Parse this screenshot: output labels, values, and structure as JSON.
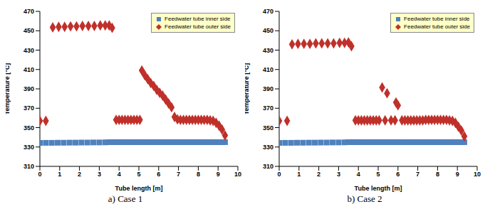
{
  "chart_data": [
    {
      "type": "scatter",
      "title": "a) Case 1",
      "x_label": "Tube length [m]",
      "y_label": "Temperature [°C]",
      "xlim": [
        0,
        10
      ],
      "xticks": [
        0,
        1,
        2,
        3,
        4,
        5,
        6,
        7,
        8,
        9,
        10
      ],
      "ylim": [
        310,
        470
      ],
      "yticks": [
        310,
        330,
        350,
        370,
        390,
        410,
        430,
        450,
        470
      ],
      "grid": false,
      "legend": "upper right",
      "series": [
        {
          "name": "Feedwater tube inner side",
          "color": "#4f81bd",
          "marker": "square",
          "x": [
            0,
            0.3,
            0.6,
            0.9,
            1.2,
            1.5,
            1.8,
            2.1,
            2.4,
            2.7,
            3.0,
            3.3,
            3.5,
            3.65,
            3.8,
            3.95,
            4.1,
            4.25,
            4.4,
            4.55,
            4.7,
            4.85,
            5.0,
            5.15,
            5.3,
            5.45,
            5.6,
            5.75,
            5.9,
            6.05,
            6.2,
            6.35,
            6.5,
            6.65,
            6.8,
            6.95,
            7.1,
            7.25,
            7.4,
            7.55,
            7.7,
            7.85,
            8.0,
            8.15,
            8.3,
            8.45,
            8.6,
            8.75,
            8.9,
            9.05,
            9.2,
            9.35
          ],
          "values": [
            334.2,
            334.3,
            334.3,
            334.4,
            334.4,
            334.5,
            334.5,
            334.6,
            334.6,
            334.7,
            334.7,
            334.8,
            335,
            335,
            335,
            335,
            335,
            335,
            335,
            335,
            335,
            335,
            335,
            335,
            335,
            335,
            335,
            335,
            335,
            335,
            335,
            335,
            335,
            335,
            335,
            335,
            335,
            335,
            335,
            335,
            335,
            335,
            335,
            335,
            335,
            335,
            335,
            335,
            335,
            335,
            335,
            335
          ]
        },
        {
          "name": "Feedwater tube outer side",
          "color": "#c0302a",
          "marker": "diamond",
          "x": [
            0,
            0.3,
            0.65,
            0.95,
            1.25,
            1.55,
            1.85,
            2.15,
            2.45,
            2.75,
            3.05,
            3.3,
            3.5,
            3.65,
            3.85,
            4.0,
            4.15,
            4.3,
            4.45,
            4.6,
            4.75,
            4.9,
            5.05,
            5.15,
            5.3,
            5.45,
            5.6,
            5.75,
            5.9,
            6.05,
            6.2,
            6.35,
            6.5,
            6.65,
            6.8,
            6.95,
            7.1,
            7.25,
            7.4,
            7.55,
            7.7,
            7.85,
            8.0,
            8.15,
            8.3,
            8.45,
            8.6,
            8.75,
            8.9,
            9.05,
            9.2,
            9.35
          ],
          "values": [
            357,
            357,
            453.5,
            454,
            454,
            454.5,
            454.5,
            455,
            455,
            455,
            455.5,
            455.5,
            455.5,
            453,
            358,
            358,
            358,
            358,
            358,
            358,
            358,
            358,
            358,
            409,
            404,
            400,
            396,
            393,
            389,
            386,
            383,
            379,
            375,
            371,
            361,
            358.5,
            358,
            358,
            358,
            358,
            358,
            358,
            358,
            358,
            358,
            358,
            357.5,
            357,
            355,
            352,
            348,
            342
          ]
        }
      ]
    },
    {
      "type": "scatter",
      "title": "b) Case 2",
      "x_label": "Tube length [m]",
      "y_label": "Temperature [°C]",
      "xlim": [
        0,
        10
      ],
      "xticks": [
        0,
        1,
        2,
        3,
        4,
        5,
        6,
        7,
        8,
        9,
        10
      ],
      "ylim": [
        310,
        470
      ],
      "yticks": [
        310,
        330,
        350,
        370,
        390,
        410,
        430,
        450,
        470
      ],
      "grid": false,
      "legend": "upper right",
      "series": [
        {
          "name": "Feedwater tube inner side",
          "color": "#4f81bd",
          "marker": "square",
          "x": [
            0,
            0.3,
            0.6,
            0.9,
            1.2,
            1.5,
            1.8,
            2.1,
            2.4,
            2.7,
            3.0,
            3.3,
            3.5,
            3.65,
            3.8,
            3.95,
            4.1,
            4.25,
            4.4,
            4.55,
            4.7,
            4.85,
            5.0,
            5.15,
            5.3,
            5.45,
            5.6,
            5.75,
            5.9,
            6.05,
            6.2,
            6.35,
            6.5,
            6.65,
            6.8,
            6.95,
            7.1,
            7.25,
            7.4,
            7.55,
            7.7,
            7.85,
            8.0,
            8.15,
            8.3,
            8.45,
            8.6,
            8.75,
            8.9,
            9.05,
            9.2,
            9.35
          ],
          "values": [
            334.2,
            334.3,
            334.3,
            334.4,
            334.4,
            334.5,
            334.5,
            334.6,
            334.6,
            334.7,
            334.7,
            334.8,
            335,
            335,
            335,
            335,
            335,
            335,
            335,
            335,
            335,
            335,
            335,
            335,
            335,
            335,
            335,
            335,
            335,
            335,
            335,
            335,
            335,
            335,
            335,
            335,
            335,
            335,
            335,
            335,
            335,
            335,
            335,
            335,
            335,
            335,
            335,
            335,
            335,
            335,
            335,
            335
          ]
        },
        {
          "name": "Feedwater tube outer side",
          "color": "#c0302a",
          "marker": "diamond",
          "x": [
            0,
            0.4,
            0.65,
            0.95,
            1.25,
            1.55,
            1.85,
            2.15,
            2.45,
            2.75,
            3.05,
            3.3,
            3.5,
            3.65,
            3.85,
            4.0,
            4.15,
            4.3,
            4.45,
            4.6,
            4.75,
            4.9,
            5.05,
            5.2,
            5.35,
            5.45,
            5.65,
            5.85,
            5.9,
            6.0,
            6.2,
            6.35,
            6.5,
            6.65,
            6.8,
            6.95,
            7.1,
            7.25,
            7.4,
            7.55,
            7.7,
            7.85,
            8.0,
            8.15,
            8.3,
            8.45,
            8.6,
            8.75,
            8.9,
            9.05,
            9.2,
            9.35
          ],
          "values": [
            357,
            357,
            436,
            436.5,
            436.5,
            436.5,
            437,
            437,
            437,
            437,
            437.5,
            437.5,
            438,
            434,
            357.5,
            357.5,
            357.5,
            357.5,
            357.5,
            357.5,
            357.5,
            357.5,
            357.5,
            391.5,
            357.5,
            385.5,
            357.5,
            357.5,
            376,
            373,
            357.5,
            357.5,
            357.5,
            357.5,
            357.5,
            357.5,
            357.5,
            357.5,
            358,
            358,
            358,
            358,
            358,
            358,
            358,
            358,
            357.5,
            357,
            355,
            351,
            347,
            341
          ]
        }
      ]
    }
  ]
}
